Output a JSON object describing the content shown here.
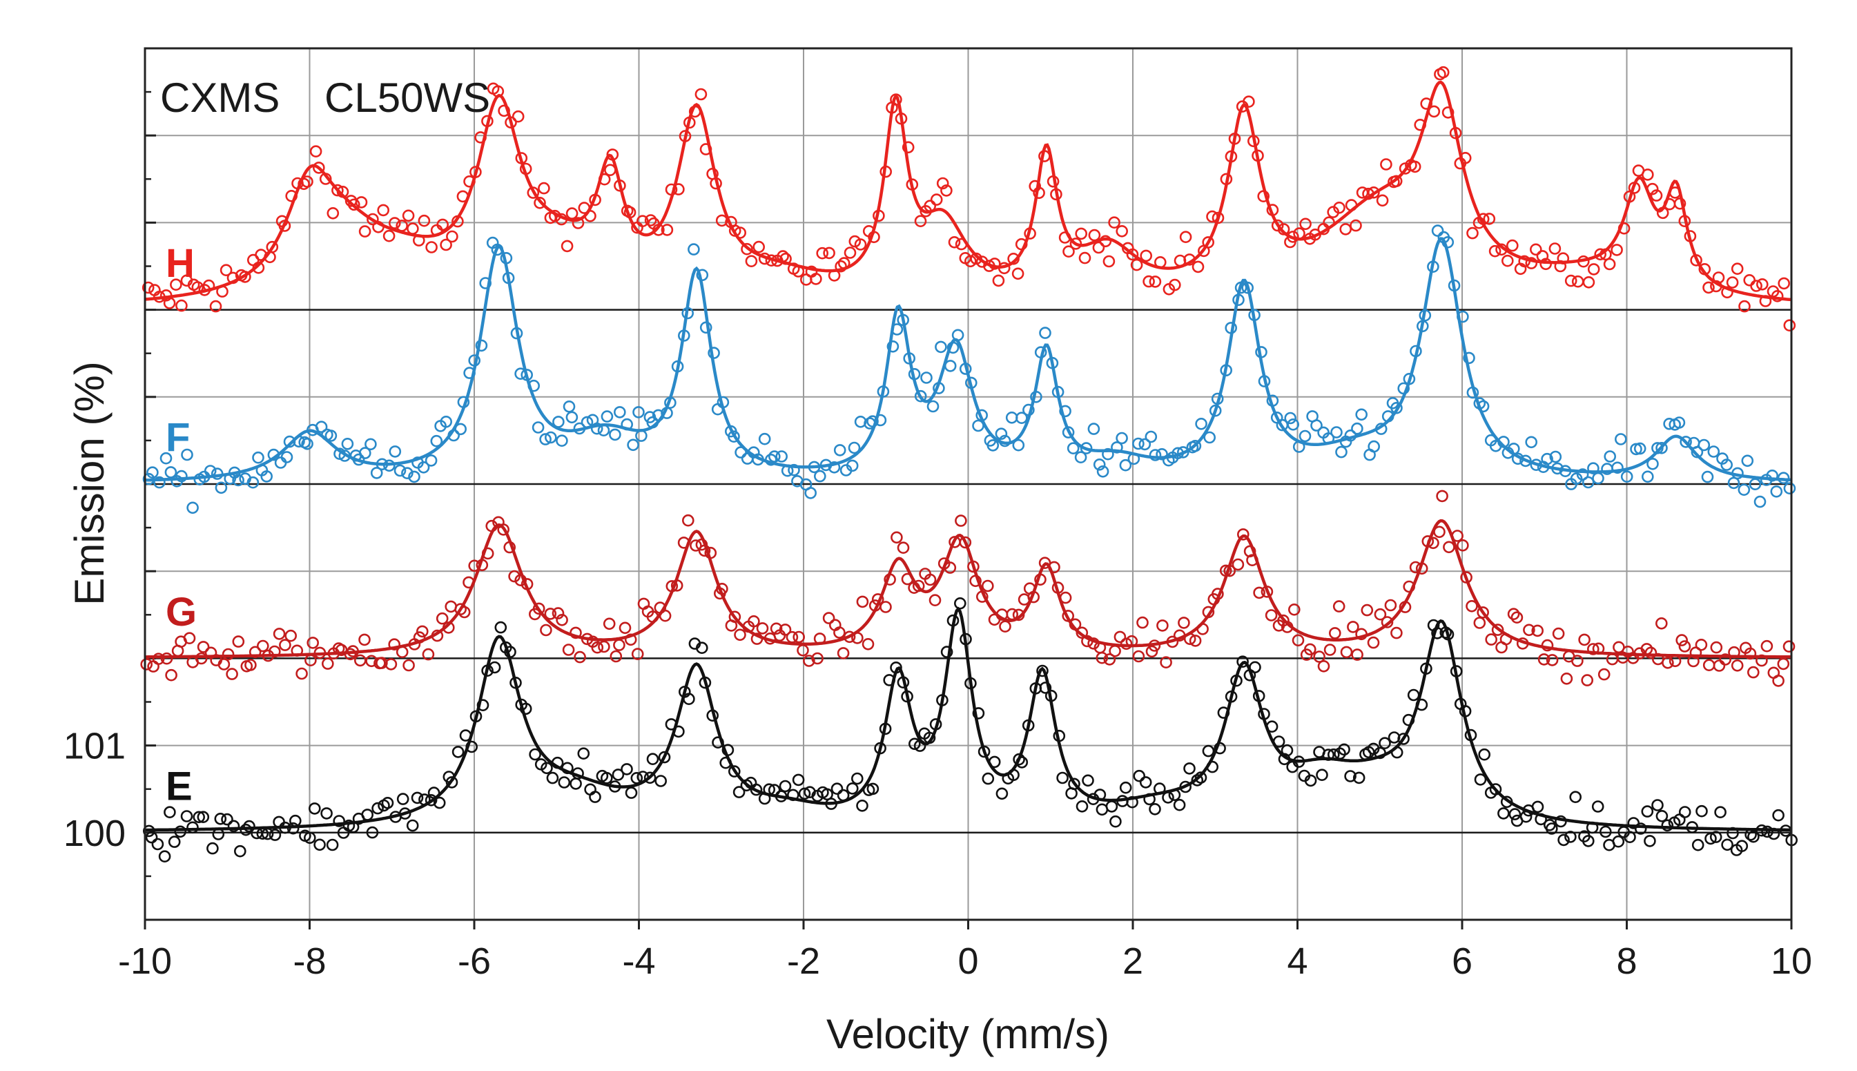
{
  "chart_data": {
    "type": "scatter",
    "title": "",
    "xlabel": "Velocity (mm/s)",
    "ylabel": "Emission (%)",
    "xlim": [
      -10,
      10
    ],
    "ylim": [
      99,
      109
    ],
    "xticks": [
      -10,
      -8,
      -6,
      -4,
      -2,
      0,
      2,
      4,
      6,
      8,
      10
    ],
    "xtick_labels": [
      "-10",
      "-8",
      "-6",
      "-4",
      "-2",
      "0",
      "2",
      "4",
      "6",
      "8",
      "10"
    ],
    "ytick_labels": [
      {
        "value": 101,
        "label": "101"
      },
      {
        "value": 100,
        "label": "100"
      }
    ],
    "grid": true,
    "annotations": [
      "CXMS",
      "CL50WS"
    ],
    "series": [
      {
        "name": "H",
        "color": "#e8231e",
        "baseline": 106,
        "peaks": [
          {
            "x": -8.0,
            "height": 1.05,
            "width": 0.35
          },
          {
            "x": -7.6,
            "height": 0.55,
            "width": 0.6
          },
          {
            "x": -6.9,
            "height": 0.35,
            "width": 0.8
          },
          {
            "x": -5.7,
            "height": 2.0,
            "width": 0.32
          },
          {
            "x": -5.0,
            "height": 0.45,
            "width": 0.6
          },
          {
            "x": -4.35,
            "height": 1.2,
            "width": 0.2
          },
          {
            "x": -3.3,
            "height": 2.05,
            "width": 0.28
          },
          {
            "x": -2.3,
            "height": 0.25,
            "width": 0.8
          },
          {
            "x": -0.88,
            "height": 2.05,
            "width": 0.17
          },
          {
            "x": -0.3,
            "height": 0.8,
            "width": 0.35
          },
          {
            "x": 0.95,
            "height": 1.55,
            "width": 0.16
          },
          {
            "x": 1.7,
            "height": 0.55,
            "width": 0.45
          },
          {
            "x": 3.35,
            "height": 2.0,
            "width": 0.24
          },
          {
            "x": 5.0,
            "height": 1.0,
            "width": 0.9
          },
          {
            "x": 5.75,
            "height": 1.9,
            "width": 0.3
          },
          {
            "x": 7.5,
            "height": 0.25,
            "width": 1.0
          },
          {
            "x": 8.15,
            "height": 1.1,
            "width": 0.22
          },
          {
            "x": 8.6,
            "height": 1.05,
            "width": 0.16
          }
        ]
      },
      {
        "name": "F",
        "color": "#2a89c8",
        "baseline": 104,
        "peaks": [
          {
            "x": -8.0,
            "height": 0.55,
            "width": 0.4
          },
          {
            "x": -5.7,
            "height": 2.6,
            "width": 0.28
          },
          {
            "x": -4.4,
            "height": 0.45,
            "width": 0.6
          },
          {
            "x": -3.3,
            "height": 2.3,
            "width": 0.22
          },
          {
            "x": -0.85,
            "height": 1.8,
            "width": 0.18
          },
          {
            "x": -0.15,
            "height": 1.45,
            "width": 0.25
          },
          {
            "x": 0.95,
            "height": 1.4,
            "width": 0.17
          },
          {
            "x": 1.8,
            "height": 0.2,
            "width": 0.5
          },
          {
            "x": 3.35,
            "height": 2.2,
            "width": 0.24
          },
          {
            "x": 4.7,
            "height": 0.25,
            "width": 0.7
          },
          {
            "x": 5.75,
            "height": 2.7,
            "width": 0.3
          },
          {
            "x": 8.6,
            "height": 0.5,
            "width": 0.3
          }
        ]
      },
      {
        "name": "G",
        "color": "#c21d1d",
        "baseline": 102,
        "peaks": [
          {
            "x": -5.7,
            "height": 1.5,
            "width": 0.35
          },
          {
            "x": -3.3,
            "height": 1.4,
            "width": 0.3
          },
          {
            "x": -0.85,
            "height": 0.95,
            "width": 0.25
          },
          {
            "x": -0.1,
            "height": 1.25,
            "width": 0.27
          },
          {
            "x": 0.95,
            "height": 0.95,
            "width": 0.2
          },
          {
            "x": 3.35,
            "height": 1.35,
            "width": 0.3
          },
          {
            "x": 5.75,
            "height": 1.55,
            "width": 0.35
          }
        ]
      },
      {
        "name": "E",
        "color": "#111111",
        "baseline": 100,
        "peaks": [
          {
            "x": -5.7,
            "height": 2.05,
            "width": 0.32
          },
          {
            "x": -4.8,
            "height": 0.35,
            "width": 0.8
          },
          {
            "x": -3.3,
            "height": 1.75,
            "width": 0.3
          },
          {
            "x": -2.2,
            "height": 0.15,
            "width": 0.6
          },
          {
            "x": -0.85,
            "height": 1.6,
            "width": 0.2
          },
          {
            "x": -0.12,
            "height": 2.3,
            "width": 0.2
          },
          {
            "x": 0.9,
            "height": 1.65,
            "width": 0.2
          },
          {
            "x": 2.3,
            "height": 0.2,
            "width": 0.8
          },
          {
            "x": 3.35,
            "height": 1.65,
            "width": 0.28
          },
          {
            "x": 4.3,
            "height": 0.45,
            "width": 0.6
          },
          {
            "x": 5.0,
            "height": 0.3,
            "width": 0.6
          },
          {
            "x": 5.75,
            "height": 2.2,
            "width": 0.3
          }
        ]
      }
    ]
  }
}
